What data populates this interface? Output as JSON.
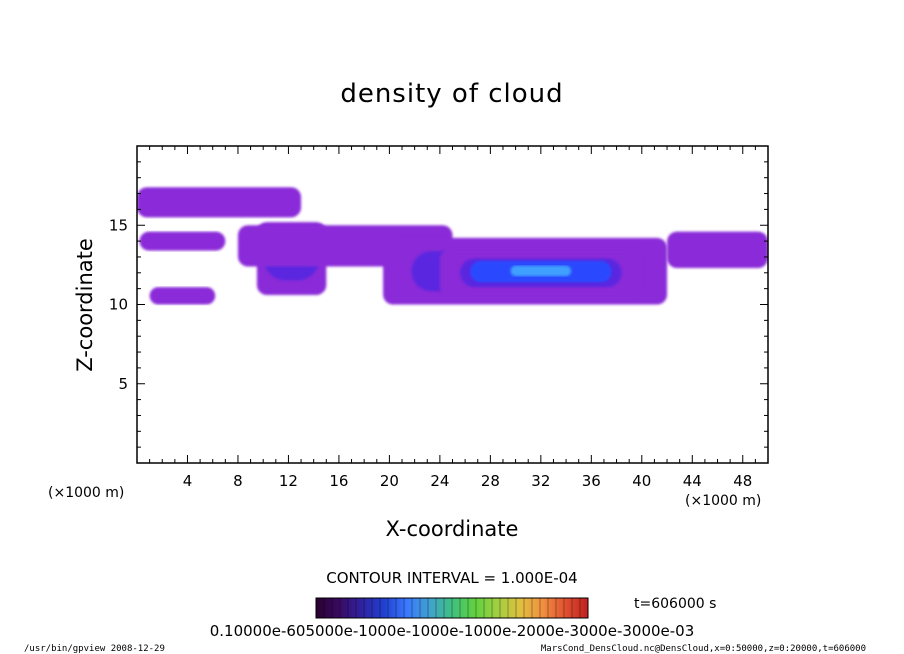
{
  "chart_data": {
    "type": "heatmap",
    "title": "density of cloud",
    "xlabel": "X-coordinate",
    "ylabel": "Z-coordinate",
    "x_units_left": "(×1000 m)",
    "x_units_right": "(×1000 m)",
    "xlim": [
      0,
      50
    ],
    "ylim": [
      0,
      20
    ],
    "xticks": [
      4,
      8,
      12,
      16,
      20,
      24,
      28,
      32,
      36,
      40,
      44,
      48
    ],
    "xtick_labels": [
      "4",
      "8",
      "12",
      "16",
      "20",
      "24",
      "28",
      "32",
      "36",
      "40",
      "44",
      "48"
    ],
    "yticks": [
      5,
      10,
      15
    ],
    "ytick_labels": [
      "5",
      "10",
      "15"
    ],
    "grid": false,
    "contour_interval": "CONTOUR INTERVAL = 1.000E-04",
    "time_label": "t=606000 s",
    "colorbar_labels": "0.10000e-605000e-1000e-1000e-1000e-2000e-3000e-3000e-03",
    "colorbar_colors": [
      "#2a0030",
      "#3a0a60",
      "#3022a0",
      "#2040d0",
      "#3a78ff",
      "#40a0d0",
      "#40c080",
      "#60d040",
      "#a0d040",
      "#e0c040",
      "#f09040",
      "#e05030",
      "#c02020"
    ],
    "cloud_colors": {
      "outer": "#8a2bd8",
      "mid": "#5a28e0",
      "inner": "#2a48ff",
      "core": "#40a0ff"
    },
    "cloud_regions": [
      {
        "name": "upper-left band",
        "x": [
          0,
          13
        ],
        "z": [
          15.5,
          17.4
        ],
        "level": "outer"
      },
      {
        "name": "left secondary band",
        "x": [
          0.2,
          7
        ],
        "z": [
          13.4,
          14.6
        ],
        "level": "outer"
      },
      {
        "name": "low-left patch",
        "x": [
          1,
          6.2
        ],
        "z": [
          10,
          11.1
        ],
        "level": "outer"
      },
      {
        "name": "tower near x=11",
        "x": [
          9.5,
          15
        ],
        "z": [
          10.6,
          15.2
        ],
        "level": "mid"
      },
      {
        "name": "long mid band",
        "x": [
          8,
          25
        ],
        "z": [
          12.4,
          15
        ],
        "level": "outer"
      },
      {
        "name": "main cloud",
        "x": [
          19.5,
          42
        ],
        "z": [
          10,
          14.2
        ],
        "level": "mid"
      },
      {
        "name": "main core",
        "x": [
          24,
          40
        ],
        "z": [
          10.5,
          13.5
        ],
        "level": "inner"
      },
      {
        "name": "right edge patch",
        "x": [
          42,
          50
        ],
        "z": [
          12.3,
          14.6
        ],
        "level": "outer"
      }
    ]
  },
  "footer": {
    "left": "/usr/bin/gpview   2008-12-29",
    "right": "MarsCond_DensCloud.nc@DensCloud,x=0:50000,z=0:20000,t=606000"
  }
}
